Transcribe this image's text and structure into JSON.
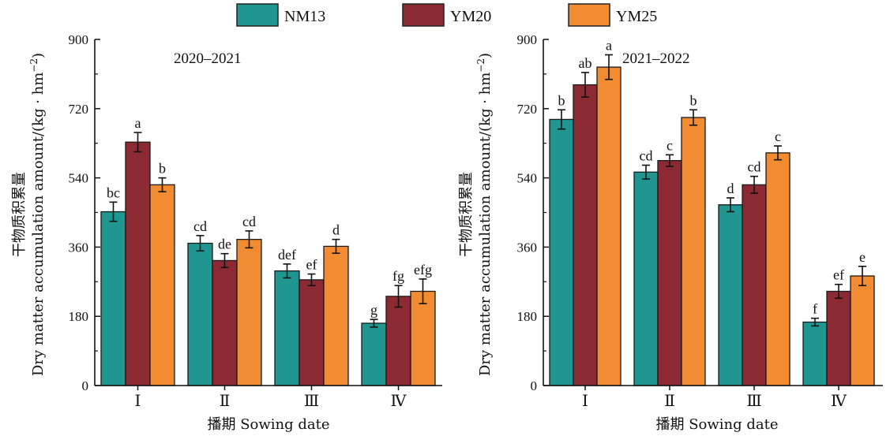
{
  "legend": [
    {
      "name": "NM13",
      "color": "#1f9690"
    },
    {
      "name": "YM20",
      "color": "#8b2a33"
    },
    {
      "name": "YM25",
      "color": "#f28c32"
    }
  ],
  "chart_data": [
    {
      "type": "bar",
      "title": "2020–2021",
      "xlabel": "播期 Sowing date",
      "ylabel_cn": "干物质积累量",
      "ylabel_en": "Dry matter accumulation amount/(kg · hm",
      "ylabel_sup": "−2",
      "ylabel_close": ")",
      "ylim": [
        0,
        900
      ],
      "yticks": [
        "0",
        "180",
        "360",
        "540",
        "720",
        "900"
      ],
      "categories": [
        "Ⅰ",
        "Ⅱ",
        "Ⅲ",
        "Ⅳ"
      ],
      "series": [
        {
          "name": "NM13",
          "values": [
            452,
            370,
            298,
            162
          ],
          "errors": [
            25,
            20,
            18,
            10
          ],
          "labels": [
            "bc",
            "cd",
            "def",
            "g"
          ]
        },
        {
          "name": "YM20",
          "values": [
            633,
            325,
            275,
            232
          ],
          "errors": [
            25,
            18,
            15,
            28
          ],
          "labels": [
            "a",
            "de",
            "ef",
            "fg"
          ]
        },
        {
          "name": "YM25",
          "values": [
            522,
            380,
            362,
            245
          ],
          "errors": [
            18,
            22,
            18,
            32
          ],
          "labels": [
            "b",
            "cd",
            "d",
            "efg"
          ]
        }
      ]
    },
    {
      "type": "bar",
      "title": "2021–2022",
      "xlabel": "播期 Sowing date",
      "ylabel_cn": "干物质积累量",
      "ylabel_en": "Dry matter accumulation amount/(kg · hm",
      "ylabel_sup": "−2",
      "ylabel_close": ")",
      "ylim": [
        0,
        900
      ],
      "yticks": [
        "0",
        "180",
        "360",
        "540",
        "720",
        "900"
      ],
      "categories": [
        "Ⅰ",
        "Ⅱ",
        "Ⅲ",
        "Ⅳ"
      ],
      "series": [
        {
          "name": "NM13",
          "values": [
            692,
            555,
            470,
            165
          ],
          "errors": [
            25,
            18,
            18,
            10
          ],
          "labels": [
            "b",
            "cd",
            "d",
            "f"
          ]
        },
        {
          "name": "YM20",
          "values": [
            782,
            585,
            522,
            245
          ],
          "errors": [
            32,
            15,
            22,
            18
          ],
          "labels": [
            "ab",
            "c",
            "cd",
            "ef"
          ]
        },
        {
          "name": "YM25",
          "values": [
            828,
            697,
            605,
            285
          ],
          "errors": [
            32,
            20,
            18,
            25
          ],
          "labels": [
            "a",
            "b",
            "c",
            "e"
          ]
        }
      ]
    }
  ]
}
